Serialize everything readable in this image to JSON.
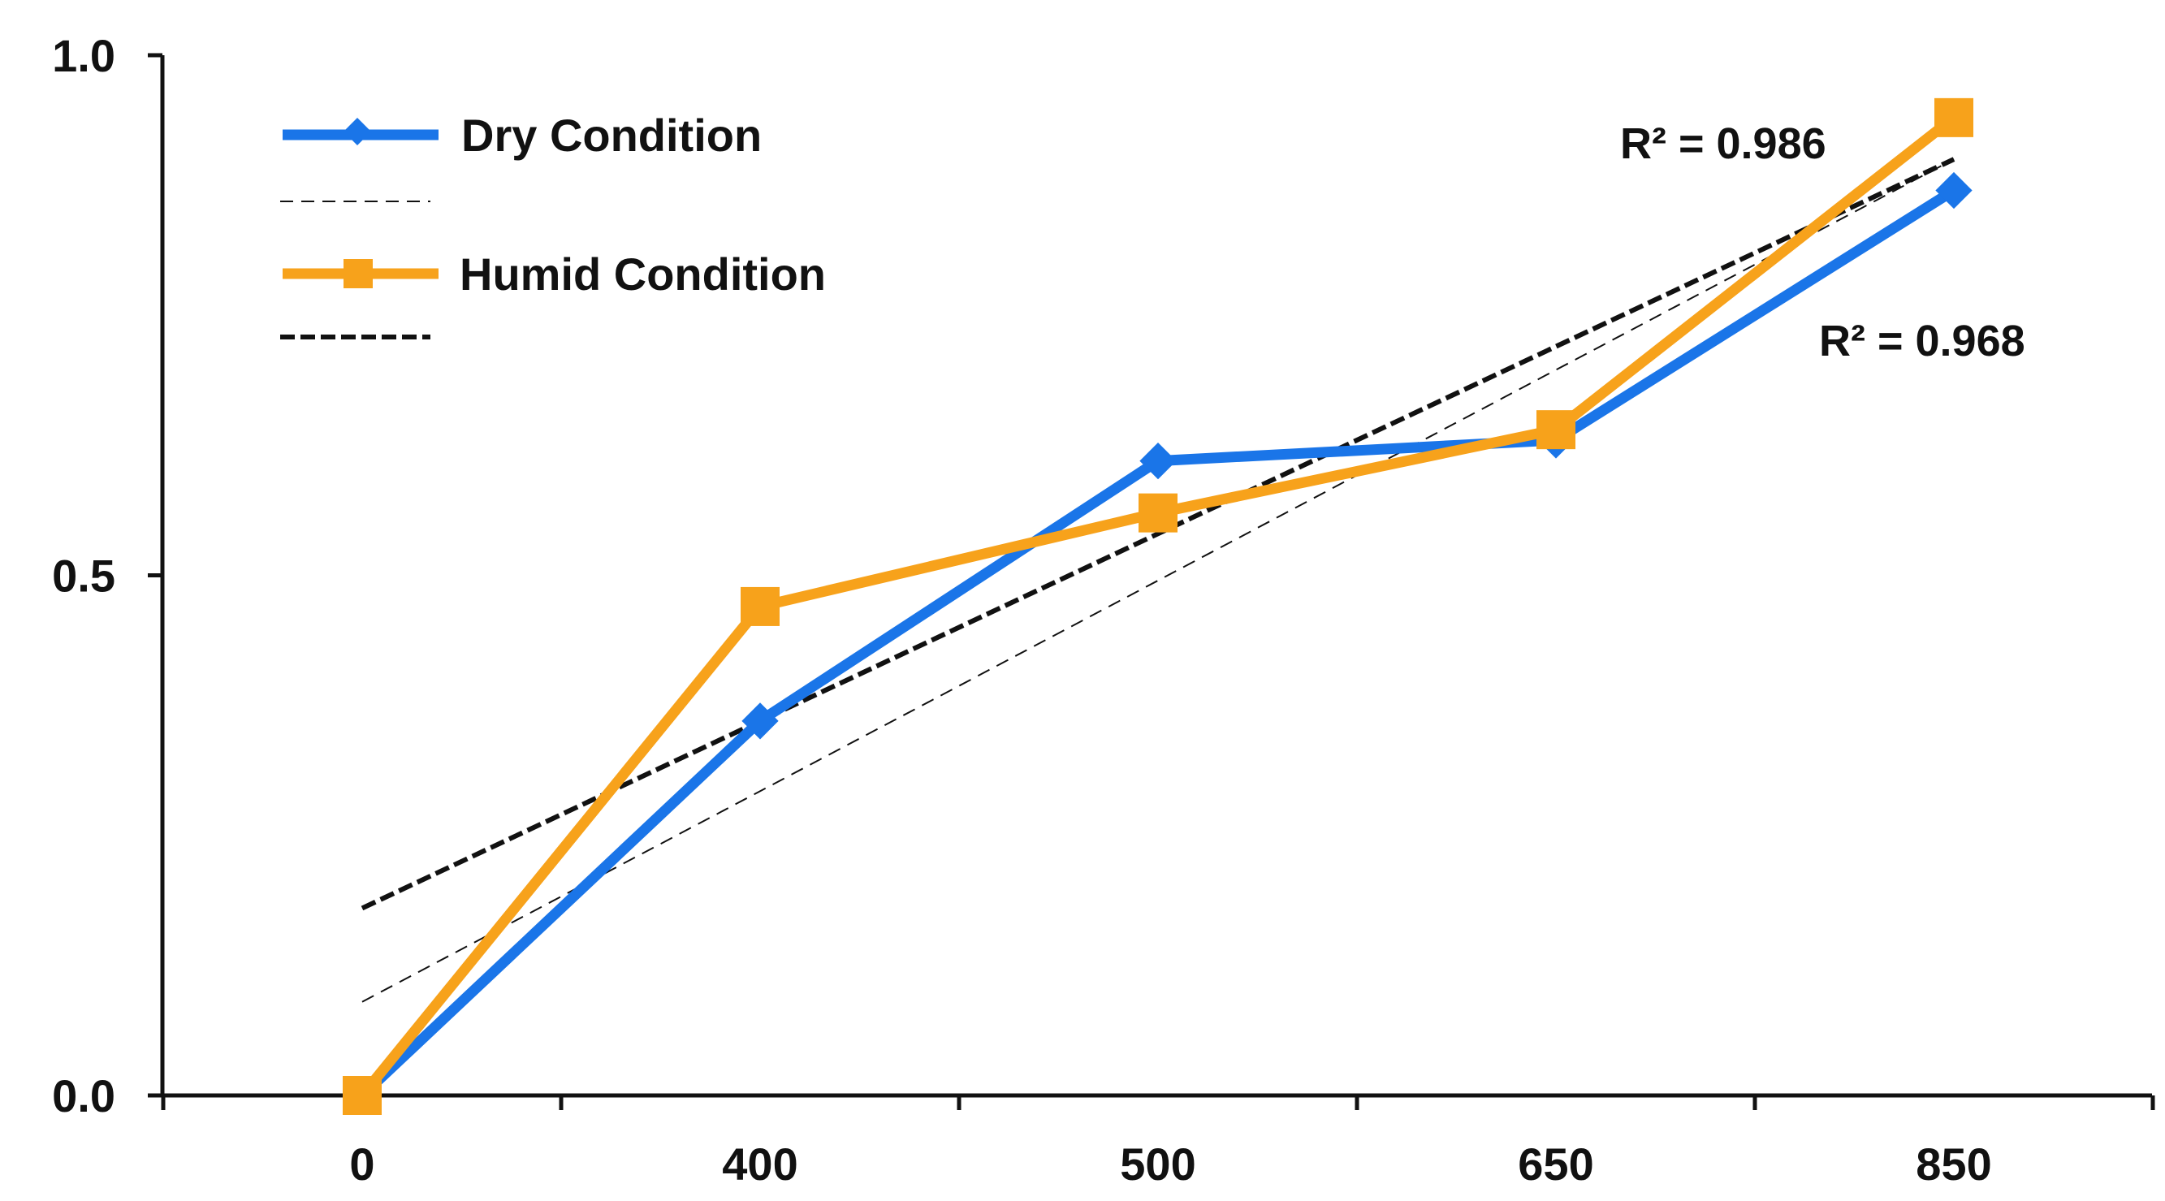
{
  "chart_data": {
    "type": "line",
    "title": "",
    "xlabel": "",
    "ylabel": "",
    "categories": [
      "0",
      "400",
      "500",
      "650",
      "850"
    ],
    "ylim": [
      0,
      1.0
    ],
    "y_ticks": [
      "0.0",
      "0.5",
      "1.0"
    ],
    "grid": false,
    "legend_position": "top-left",
    "series": [
      {
        "name": "Dry Condition",
        "marker": "diamond",
        "color": "#1a75e8",
        "values": [
          0.0,
          0.36,
          0.61,
          0.63,
          0.87
        ]
      },
      {
        "name": "Humid Condition",
        "marker": "square",
        "color": "#f7a21b",
        "values": [
          0.0,
          0.47,
          0.56,
          0.64,
          0.94
        ]
      }
    ],
    "trendlines": [
      {
        "series": "Dry Condition",
        "style": "thin-dashed",
        "color": "#111111",
        "start": 0.09,
        "end": 0.9,
        "r2_label": "R² = 0.986"
      },
      {
        "series": "Humid Condition",
        "style": "thick-dashed",
        "color": "#111111",
        "start": 0.18,
        "end": 0.9,
        "r2_label": "R² = 0.968"
      }
    ]
  }
}
